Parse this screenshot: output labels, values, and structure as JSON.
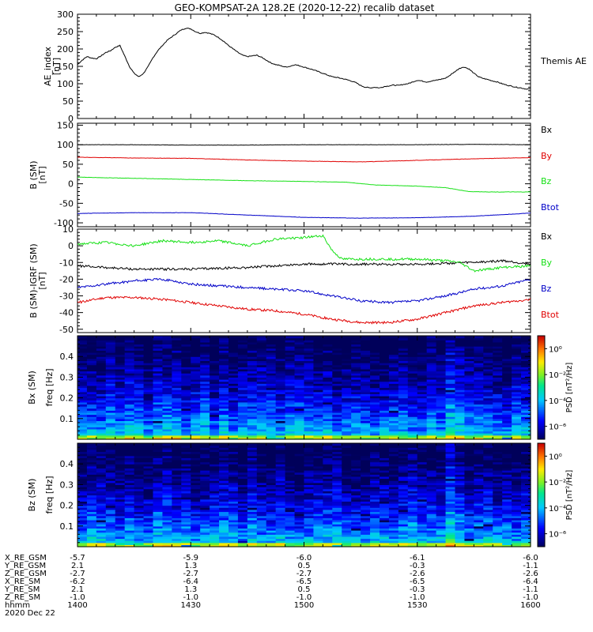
{
  "title": "GEO-KOMPSAT-2A 128.2E (2020-12-22) recalib dataset",
  "colors": {
    "black": "#000000",
    "red": "#e00000",
    "green": "#16e016",
    "blue": "#0000c8",
    "grey": "#808080"
  },
  "chart_data": [
    {
      "type": "line",
      "panel": "ae",
      "ylabel": "AE_index",
      "yunit": "[nT]",
      "ylim": [
        0,
        300
      ],
      "yticks": [
        0,
        50,
        100,
        150,
        200,
        250,
        300
      ],
      "legend": [
        "Themis AE"
      ],
      "x": [
        0,
        10,
        20,
        30,
        40,
        50,
        60,
        70,
        80,
        90,
        100,
        110,
        120,
        130,
        140,
        150,
        160,
        170,
        180,
        190,
        200,
        210,
        220,
        230,
        240,
        250,
        260,
        270,
        280,
        290,
        300,
        310,
        320,
        330,
        340,
        350,
        360,
        370,
        380,
        390,
        400,
        410,
        420,
        430,
        440,
        450,
        460,
        470,
        480,
        490,
        500,
        510,
        520,
        530,
        540,
        550,
        560,
        570,
        580,
        590,
        600,
        610,
        620,
        630,
        640,
        650,
        660,
        670,
        680,
        690,
        700,
        710,
        720,
        730,
        740,
        750,
        760,
        770,
        780,
        790,
        800,
        810,
        820,
        830,
        840,
        850,
        860,
        870,
        880,
        890,
        900,
        910,
        920,
        930,
        940,
        950,
        960
      ],
      "series": [
        {
          "name": "Themis AE",
          "color": "black",
          "values": [
            155,
            168,
            178,
            174,
            172,
            180,
            190,
            195,
            205,
            210,
            180,
            150,
            130,
            120,
            130,
            150,
            175,
            195,
            210,
            225,
            235,
            245,
            255,
            260,
            258,
            250,
            245,
            248,
            245,
            240,
            232,
            222,
            210,
            200,
            190,
            182,
            178,
            180,
            182,
            176,
            168,
            160,
            155,
            152,
            148,
            150,
            155,
            152,
            148,
            144,
            140,
            135,
            130,
            125,
            120,
            118,
            115,
            112,
            108,
            103,
            95,
            90,
            88,
            90,
            88,
            92,
            94,
            96,
            95,
            98,
            100,
            105,
            110,
            108,
            105,
            108,
            110,
            113,
            116,
            125,
            135,
            145,
            148,
            142,
            130,
            120,
            115,
            112,
            108,
            105,
            100,
            96,
            93,
            90,
            88,
            85,
            85
          ]
        }
      ]
    },
    {
      "type": "line",
      "panel": "bsm",
      "ylabel": "B (SM)",
      "yunit": "[nT]",
      "ylim": [
        -110,
        155
      ],
      "yticks": [
        -100,
        -50,
        0,
        50,
        100,
        150
      ],
      "legend": [
        "Bx",
        "By",
        "Bz",
        "Btot"
      ],
      "series": [
        {
          "name": "Bx",
          "color": "black",
          "x": [
            0,
            120,
            240,
            360,
            480,
            600,
            720,
            840,
            960
          ],
          "values": [
            100,
            100,
            99,
            99,
            100,
            100,
            100,
            101,
            100
          ]
        },
        {
          "name": "By",
          "color": "red",
          "x": [
            0,
            120,
            240,
            360,
            480,
            600,
            720,
            840,
            960
          ],
          "values": [
            68,
            66,
            65,
            61,
            58,
            56,
            60,
            64,
            67
          ]
        },
        {
          "name": "Bz",
          "color": "green",
          "x": [
            0,
            120,
            240,
            360,
            480,
            570,
            630,
            720,
            780,
            830,
            880,
            960
          ],
          "values": [
            17,
            14,
            11,
            8,
            6,
            4,
            -3,
            -6,
            -10,
            -20,
            -21,
            -21
          ]
        },
        {
          "name": "Btot",
          "color": "blue",
          "x": [
            0,
            120,
            240,
            360,
            480,
            600,
            720,
            840,
            960
          ],
          "values": [
            -76,
            -74,
            -74,
            -80,
            -86,
            -88,
            -87,
            -83,
            -75
          ]
        }
      ]
    },
    {
      "type": "line",
      "panel": "digrf",
      "ylabel": "B (SM)-IGRF (SM)",
      "yunit": "[nT]",
      "ylim": [
        -52,
        10
      ],
      "yticks": [
        -50,
        -40,
        -30,
        -20,
        -10,
        0,
        10
      ],
      "legend": [
        "Bx",
        "By",
        "Bz",
        "Btot"
      ],
      "series": [
        {
          "name": "Bx",
          "color": "black",
          "x": [
            0,
            60,
            120,
            240,
            360,
            480,
            600,
            720,
            840,
            900,
            960
          ],
          "values": [
            -12,
            -13,
            -14,
            -14,
            -13,
            -11,
            -11,
            -11,
            -10,
            -9,
            -11
          ]
        },
        {
          "name": "By",
          "color": "green",
          "x": [
            0,
            60,
            120,
            180,
            240,
            300,
            360,
            420,
            480,
            520,
            540,
            560,
            600,
            720,
            780,
            810,
            840,
            900,
            960
          ],
          "values": [
            1,
            2,
            0,
            3,
            2,
            3,
            0,
            4,
            5,
            6,
            -3,
            -8,
            -8,
            -8,
            -9,
            -10,
            -15,
            -13,
            -12
          ]
        },
        {
          "name": "Bz",
          "color": "blue",
          "x": [
            0,
            60,
            120,
            180,
            240,
            300,
            360,
            420,
            480,
            540,
            600,
            660,
            720,
            780,
            840,
            900,
            960
          ],
          "values": [
            -25,
            -23,
            -21,
            -20,
            -23,
            -24,
            -25,
            -26,
            -27,
            -30,
            -33,
            -34,
            -33,
            -30,
            -26,
            -24,
            -20
          ]
        },
        {
          "name": "Btot",
          "color": "red",
          "x": [
            0,
            60,
            120,
            180,
            240,
            300,
            360,
            420,
            480,
            540,
            600,
            660,
            720,
            780,
            840,
            900,
            960
          ],
          "values": [
            -34,
            -31,
            -31,
            -32,
            -34,
            -36,
            -38,
            -39,
            -41,
            -44,
            -46,
            -46,
            -44,
            -40,
            -36,
            -34,
            -32
          ]
        }
      ]
    },
    {
      "type": "heatmap",
      "panel": "spec-bx",
      "label_component": "Bx (SM)",
      "ylabel": "freq",
      "yunit": "[Hz]",
      "ylim": [
        0.0,
        0.5
      ],
      "yticks": [
        0.1,
        0.2,
        0.3,
        0.4
      ],
      "colorbar_label": "PSD [nT²/Hz]",
      "colorbar_ticks": [
        "10⁰",
        "10⁻²",
        "10⁻⁴",
        "10⁻⁶"
      ],
      "psd_log10_range": [
        -7,
        1
      ]
    },
    {
      "type": "heatmap",
      "panel": "spec-bz",
      "label_component": "Bz (SM)",
      "ylabel": "freq",
      "yunit": "[Hz]",
      "ylim": [
        0.0,
        0.5
      ],
      "yticks": [
        0.1,
        0.2,
        0.3,
        0.4
      ],
      "colorbar_label": "PSD [nT²/Hz]",
      "colorbar_ticks": [
        "10⁰",
        "10⁻²",
        "10⁻⁴",
        "10⁻⁶"
      ],
      "psd_log10_range": [
        -7,
        1
      ]
    }
  ],
  "xaxis": {
    "rows": [
      {
        "label": "X_RE_GSM",
        "values": [
          "-5.7",
          "-5.9",
          "-6.0",
          "-6.1",
          "-6.0"
        ]
      },
      {
        "label": "Y_RE_GSM",
        "values": [
          "2.1",
          "1.3",
          "0.5",
          "-0.3",
          "-1.1"
        ]
      },
      {
        "label": "Z_RE_GSM",
        "values": [
          "-2.7",
          "-2.7",
          "-2.7",
          "-2.6",
          "-2.6"
        ]
      },
      {
        "label": "X_RE_SM",
        "values": [
          "-6.2",
          "-6.4",
          "-6.5",
          "-6.5",
          "-6.4"
        ]
      },
      {
        "label": "Y_RE_SM",
        "values": [
          "2.1",
          "1.3",
          "0.5",
          "-0.3",
          "-1.1"
        ]
      },
      {
        "label": "Z_RE_SM",
        "values": [
          "-1.0",
          "-1.0",
          "-1.0",
          "-1.0",
          "-1.0"
        ]
      },
      {
        "label": "hhmm",
        "values": [
          "1400",
          "1430",
          "1500",
          "1530",
          "1600"
        ]
      }
    ],
    "date": "2020 Dec 22"
  }
}
